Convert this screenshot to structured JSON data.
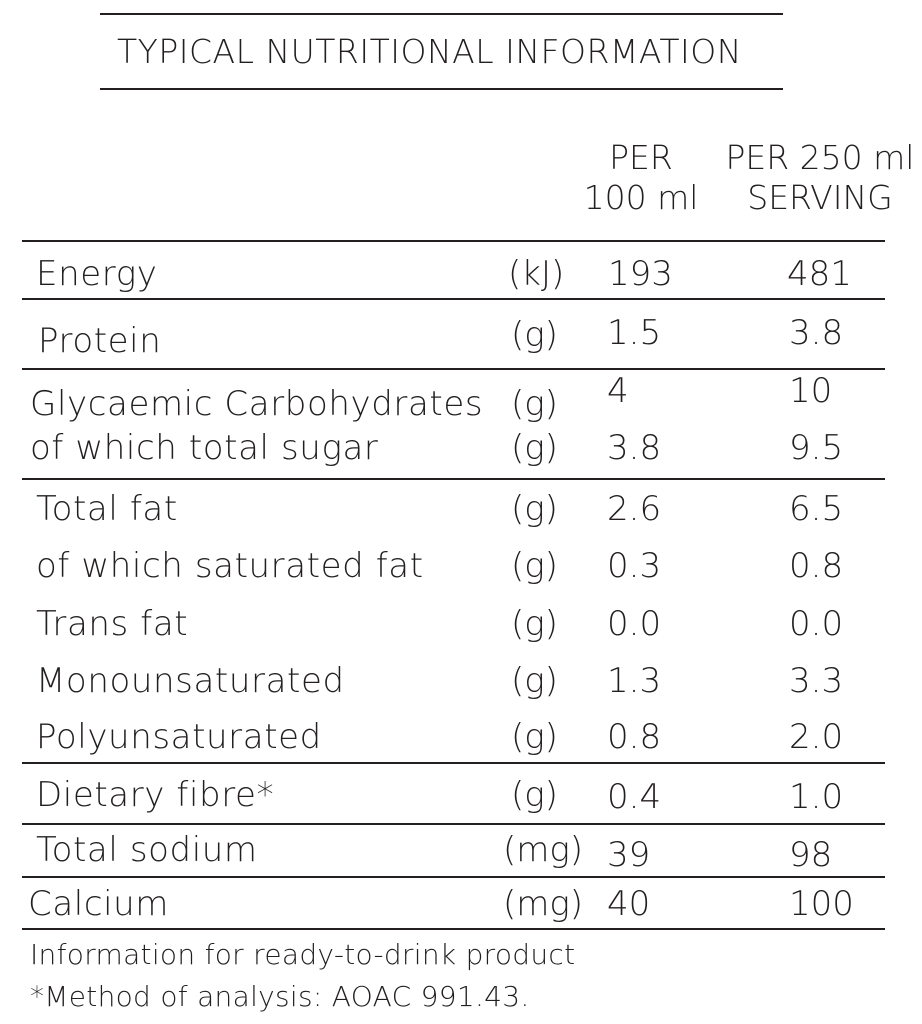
{
  "title": "TYPICAL NUTRITIONAL INFORMATION",
  "columns": {
    "per100_line1": "PER",
    "per100_line2": "100 ml",
    "perServing_line1": "PER 250 ml",
    "perServing_line2": "SERVING"
  },
  "rows": [
    {
      "label": "Energy",
      "unit": "(kJ)",
      "per100": "193",
      "perServing": "481"
    },
    {
      "label": "Protein",
      "unit": "(g)",
      "per100": "1.5",
      "perServing": "3.8"
    },
    {
      "label": "Glycaemic Carbohydrates",
      "unit": "(g)",
      "per100": "4",
      "perServing": "10"
    },
    {
      "label": "of which total sugar",
      "unit": "(g)",
      "per100": "3.8",
      "perServing": "9.5"
    },
    {
      "label": "Total fat",
      "unit": "(g)",
      "per100": "2.6",
      "perServing": "6.5"
    },
    {
      "label": "of which saturated fat",
      "unit": "(g)",
      "per100": "0.3",
      "perServing": "0.8"
    },
    {
      "label": "Trans fat",
      "unit": "(g)",
      "per100": "0.0",
      "perServing": "0.0"
    },
    {
      "label": "Monounsaturated",
      "unit": "(g)",
      "per100": "1.3",
      "perServing": "3.3"
    },
    {
      "label": "Polyunsaturated",
      "unit": "(g)",
      "per100": "0.8",
      "perServing": "2.0"
    },
    {
      "label": "Dietary fibre*",
      "unit": "(g)",
      "per100": "0.4",
      "perServing": "1.0"
    },
    {
      "label": "Total sodium",
      "unit": "(mg)",
      "per100": "39",
      "perServing": "98"
    },
    {
      "label": "Calcium",
      "unit": "(mg)",
      "per100": "40",
      "perServing": "100"
    }
  ],
  "footnotes": {
    "line1": "Information for ready-to-drink product",
    "line2": "*Method of analysis: AOAC 991.43."
  }
}
